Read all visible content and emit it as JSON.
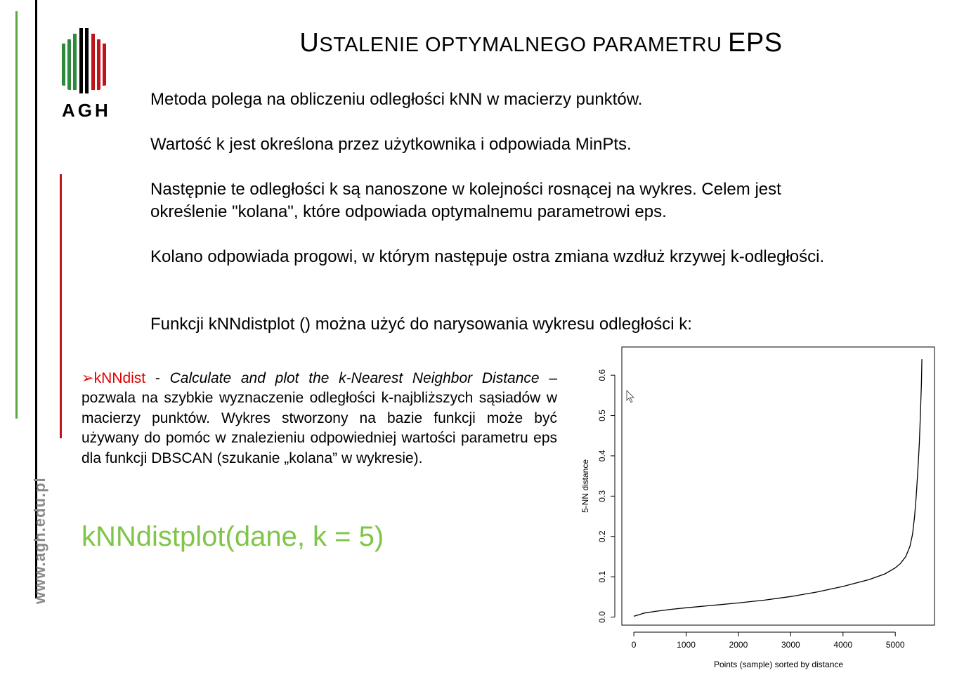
{
  "branding": {
    "logo_text": "AGH",
    "website": "www.agh.edu.pl",
    "colors": {
      "green": "#5aa83f",
      "red": "#c0141b",
      "black": "#000000"
    }
  },
  "title": {
    "cap1": "U",
    "rest1": "STALENIE OPTYMALNEGO PARAMETRU ",
    "cap2": "EPS"
  },
  "paragraphs": [
    "Metoda polega na obliczeniu odległości kNN w macierzy punktów.",
    "Wartość k jest określona przez użytkownika i odpowiada MinPts.",
    "Następnie te odległości k są nanoszone w kolejności rosnącej na wykres. Celem jest określenie \"kolana\", które odpowiada optymalnemu parametrowi eps.",
    "Kolano odpowiada progowi, w którym następuje ostra zmiana wzdłuż krzywej k-odległości.",
    "Funkcji kNNdistplot () można użyć do narysowania wykresu odległości k:"
  ],
  "bullet": {
    "marker": "➢",
    "func_name": "kNNdist",
    "separator": " - ",
    "italic_desc": "Calculate and plot the k-Nearest Neighbor Distance",
    "rest": " – pozwala na szybkie wyznaczenie odległości k-najbliższych sąsiadów w macierzy punktów. Wykres stworzony na bazie funkcji może być używany do pomóc w znalezieniu odpowiedniej wartości parametru eps dla funkcji DBSCAN (szukanie „kolana” w wykresie)."
  },
  "code_example": "kNNdistplot(dane, k = 5)",
  "chart_data": {
    "type": "line",
    "title": "",
    "xlabel": "Points (sample) sorted by distance",
    "ylabel": "5-NN distance",
    "xlim": [
      -230,
      5750
    ],
    "ylim": [
      -0.02,
      0.67
    ],
    "xticks": [
      0,
      1000,
      2000,
      3000,
      4000,
      5000
    ],
    "xtick_labels": [
      "0",
      "1000",
      "2000",
      "3000",
      "4000",
      "5000"
    ],
    "yticks": [
      0.0,
      0.1,
      0.2,
      0.3,
      0.4,
      0.5,
      0.6
    ],
    "ytick_labels": [
      "0.0",
      "0.1",
      "0.2",
      "0.3",
      "0.4",
      "0.5",
      "0.6"
    ],
    "grid": false,
    "series": [
      {
        "color": "#000000",
        "x": [
          0,
          100,
          200,
          400,
          700,
          1000,
          1500,
          2000,
          2500,
          3000,
          3500,
          4000,
          4500,
          4800,
          5000,
          5100,
          5200,
          5280,
          5330,
          5370,
          5400,
          5430,
          5460,
          5480,
          5500,
          5510
        ],
        "y": [
          0.002,
          0.006,
          0.01,
          0.014,
          0.019,
          0.023,
          0.029,
          0.035,
          0.042,
          0.051,
          0.062,
          0.076,
          0.093,
          0.107,
          0.122,
          0.133,
          0.15,
          0.175,
          0.205,
          0.25,
          0.3,
          0.36,
          0.43,
          0.5,
          0.58,
          0.64
        ]
      }
    ]
  }
}
